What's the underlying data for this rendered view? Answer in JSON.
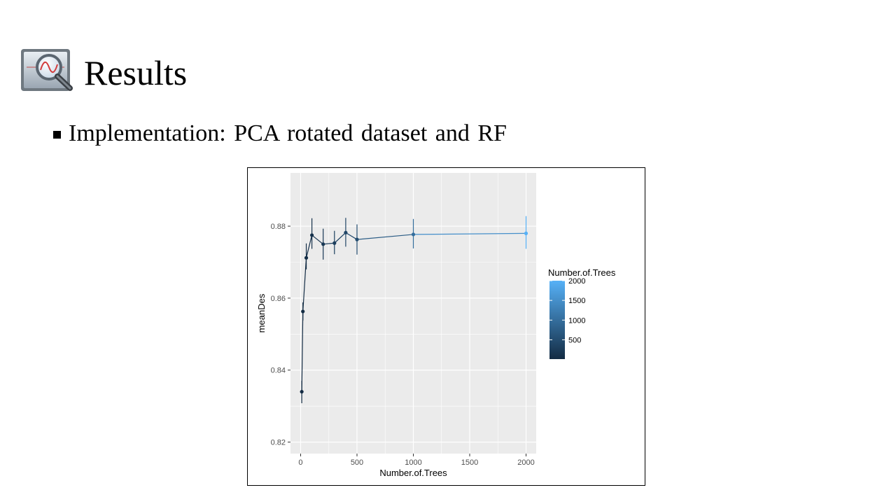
{
  "slide": {
    "title": "Results",
    "bullet": "Implementation:  PCA rotated dataset and RF",
    "icon": "magnifier-graph-icon"
  },
  "chart_data": {
    "type": "line",
    "xlabel": "Number.of.Trees",
    "ylabel": "meanDes",
    "xlim": [
      -90,
      2090
    ],
    "ylim": [
      0.8168,
      0.8948
    ],
    "x_ticks": [
      0,
      500,
      1000,
      1500,
      2000
    ],
    "y_ticks": [
      0.82,
      0.84,
      0.86,
      0.88
    ],
    "x_tick_labels": [
      "0",
      "500",
      "1000",
      "1500",
      "2000"
    ],
    "y_tick_labels": [
      "0.82",
      "0.84",
      "0.86",
      "0.88"
    ],
    "grid": true,
    "error_bars": true,
    "points": [
      {
        "x": 10,
        "y": 0.834,
        "ymin": 0.8308,
        "ymax": 0.837
      },
      {
        "x": 20,
        "y": 0.8563,
        "ymin": 0.8538,
        "ymax": 0.8588
      },
      {
        "x": 50,
        "y": 0.8712,
        "ymin": 0.868,
        "ymax": 0.8752
      },
      {
        "x": 100,
        "y": 0.8775,
        "ymin": 0.8737,
        "ymax": 0.8822
      },
      {
        "x": 200,
        "y": 0.875,
        "ymin": 0.8707,
        "ymax": 0.8793
      },
      {
        "x": 300,
        "y": 0.8753,
        "ymin": 0.8722,
        "ymax": 0.8787
      },
      {
        "x": 400,
        "y": 0.8782,
        "ymin": 0.8743,
        "ymax": 0.8823
      },
      {
        "x": 500,
        "y": 0.8763,
        "ymin": 0.8721,
        "ymax": 0.8805
      },
      {
        "x": 1000,
        "y": 0.8777,
        "ymin": 0.8738,
        "ymax": 0.882
      },
      {
        "x": 2000,
        "y": 0.878,
        "ymin": 0.8737,
        "ymax": 0.8828
      }
    ],
    "legend": {
      "title": "Number.of.Trees",
      "position": "right",
      "breaks": [
        500,
        1000,
        1500,
        2000
      ],
      "break_labels": [
        "500",
        "1000",
        "1500",
        "2000"
      ],
      "range": [
        10,
        2000
      ],
      "color_low": "#132B43",
      "color_high": "#56B1F7"
    },
    "panel_background": "#EBEBEB",
    "grid_color": "#FFFFFF"
  }
}
